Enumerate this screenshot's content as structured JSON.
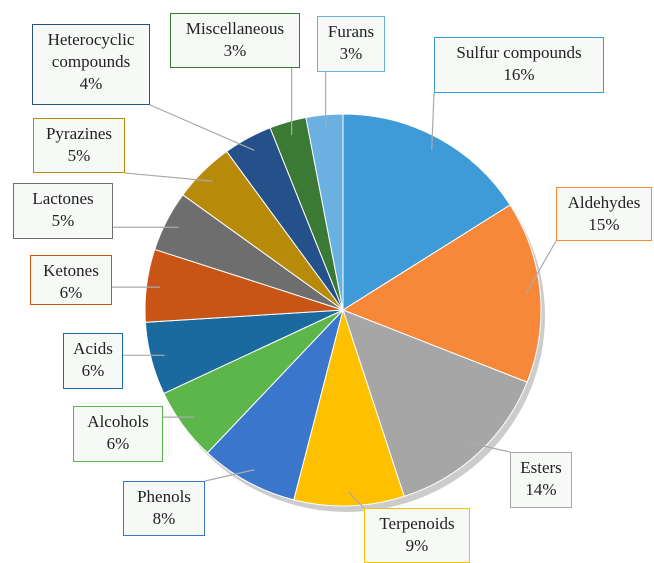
{
  "chart_data": {
    "type": "pie",
    "categories": [
      "Sulfur compounds",
      "Aldehydes",
      "Esters",
      "Terpenoids",
      "Phenols",
      "Alcohols",
      "Acids",
      "Ketones",
      "Lactones",
      "Pyrazines",
      "Heterocyclic compounds",
      "Miscellaneous",
      "Furans"
    ],
    "values": [
      16,
      15,
      14,
      9,
      8,
      6,
      6,
      6,
      5,
      5,
      4,
      3,
      3
    ],
    "value_labels": [
      "16%",
      "15%",
      "14%",
      "9%",
      "8%",
      "6%",
      "6%",
      "6%",
      "5%",
      "5%",
      "4%",
      "3%",
      "3%"
    ],
    "colors": [
      "#3f9ad8",
      "#f7883a",
      "#a6a6a6",
      "#ffc000",
      "#3a77cc",
      "#5cb64a",
      "#1a6aa0",
      "#c85415",
      "#6e6e6e",
      "#b88a0a",
      "#25518a",
      "#3a7a35",
      "#6ab0e0"
    ]
  }
}
